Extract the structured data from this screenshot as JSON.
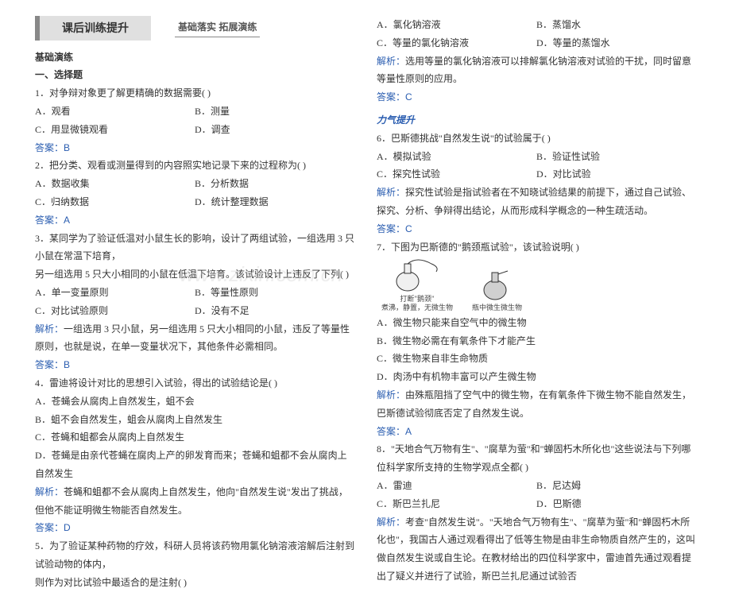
{
  "banner": {
    "title": "课后训练提升",
    "subtitle": "基础落实  拓展演练"
  },
  "left": {
    "section": "基础演练",
    "part1": "一、选择题",
    "q1": {
      "stem": "1．对争辩对象更了解更精确的数据需要(      )",
      "a": "A．观看",
      "b": "B．测量",
      "c": "C．用显微镜观看",
      "d": "D．调查",
      "ans": "答案：B"
    },
    "q2": {
      "stem": "2．把分类、观看或测量得到的内容照实地记录下来的过程称为(        )",
      "a": "A．数据收集",
      "b": "B．分析数据",
      "c": "C．归纳数据",
      "d": "D．统计整理数据",
      "ans": "答案：A"
    },
    "q3": {
      "stem1": "3．某同学为了验证低温对小鼠生长的影响，设计了两组试验，一组选用 3 只小鼠在常温下培育，",
      "stem2": "另一组选用 5 只大小相同的小鼠在低温下培育。该试验设计上违反了下列(        )",
      "a": "A．单一变量原则",
      "b": "B．等量性原则",
      "c": "C．对比试验原则",
      "d": "D．没有不足",
      "analysis": "解析：一组选用 3 只小鼠，另一组选用 5 只大小相同的小鼠，违反了等量性原则，也就是说，在单一变量状况下，其他条件必需相同。",
      "ans": "答案：B"
    },
    "q4": {
      "stem": "4．雷迪将设计对比的思想引入试验，得出的试验结论是(      )",
      "a": "A．苍蝇会从腐肉上自然发生，蛆不会",
      "b": "B．蛆不会自然发生，蛆会从腐肉上自然发生",
      "c": "C．苍蝇和蛆都会从腐肉上自然发生",
      "d": "D．苍蝇是由亲代苍蝇在腐肉上产的卵发育而来；苍蝇和蛆都不会从腐肉上自然发生",
      "analysis": "解析：苍蝇和蛆都不会从腐肉上自然发生，他向\"自然发生说\"发出了挑战，但他不能证明微生物能否自然发生。",
      "ans": "答案：D"
    },
    "q5": {
      "stem1": "5．为了验证某种药物的疗效，科研人员将该药物用氯化钠溶液溶解后注射到试验动物的体内，",
      "stem2": "则作为对比试验中最适合的是注射(      )"
    }
  },
  "right": {
    "q5opts": {
      "a": "A．氯化钠溶液",
      "b": "B．蒸馏水",
      "c": "C．等量的氯化钠溶液",
      "d": "D．等量的蒸馏水",
      "analysis": "解析：选用等量的氯化钠溶液可以排解氯化钠溶液对试验的干扰，同时留意等量性原则的应用。",
      "ans": "答案：C"
    },
    "liftTitle": "力气提升",
    "q6": {
      "stem": "6．巴斯德挑战\"自然发生说\"的试验属于(        )",
      "a": "A．模拟试验",
      "b": "B．验证性试验",
      "c": "C．探究性试验",
      "d": "D．对比试验",
      "analysis": "解析：探究性试验是指试验者在不知晓试验结果的前提下，通过自己试验、探究、分析、争辩得出结论，从而形成科学概念的一种生疏活动。",
      "ans": "答案：C"
    },
    "q7": {
      "stem": "7．下图为巴斯德的\"鹅颈瓶试验\"，该试验说明(        )",
      "flask1_mid": "打断\"鹅颈\"",
      "flask1_bot": "煮沸，静置，无微生物",
      "flask2_bot": "瓶中微生微生物",
      "a": "A．微生物只能来自空气中的微生物",
      "b": "B．微生物必需在有氧条件下才能产生",
      "c": "C．微生物来自非生命物质",
      "d": "D．肉汤中有机物丰富可以产生微生物",
      "analysis": "解析：由殊瓶阻挡了空气中的微生物，在有氧条件下微生物不能自然发生，巴斯德试验彻底否定了自然发生说。",
      "ans": "答案：A"
    },
    "q8": {
      "stem": "8．\"天地合气万物有生\"、\"腐草为萤\"和\"蝉固朽木所化也\"这些说法与下列哪位科学家所支持的生物学观点全都(        )",
      "a": "A．雷迪",
      "b": "B．尼达姆",
      "c": "C．斯巴兰扎尼",
      "d": "D．巴斯德",
      "analysis": "解析：考查\"自然发生说\"。\"天地合气万物有生\"、\"腐草为萤\"和\"蝉固朽木所化也\"，我国古人通过观看得出了低等生物是由非生命物质自然产生的，这叫做自然发生说或自生论。在教材给出的四位科学家中，雷迪首先通过观看提出了疑义并进行了试验，斯巴兰扎尼通过试验否"
    }
  }
}
